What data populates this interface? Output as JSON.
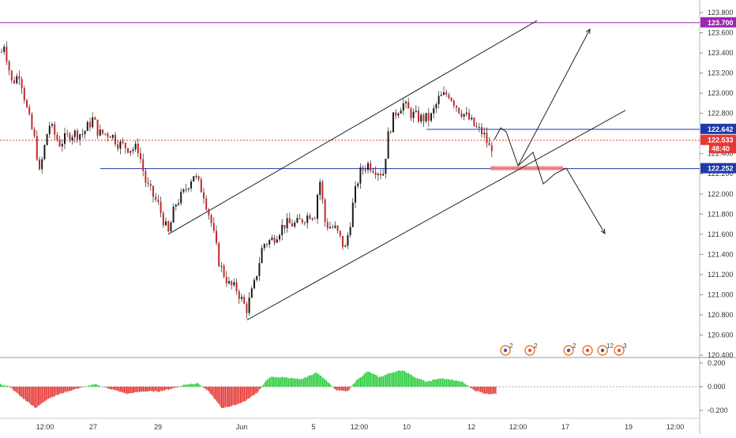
{
  "chart_data": [
    {
      "type": "candlestick",
      "title": "",
      "y_ticks": [
        "123.800",
        "123.600",
        "123.400",
        "123.200",
        "123.000",
        "122.800",
        "122.400",
        "122.200",
        "122.000",
        "121.800",
        "121.600",
        "121.400",
        "121.200",
        "121.000",
        "120.800",
        "120.600",
        "120.400"
      ],
      "x_ticks": [
        "12:00",
        "27",
        "29",
        "Jun",
        "5",
        "12:00",
        "10",
        "12",
        "12:00",
        "17",
        "19",
        "12:00"
      ],
      "price_tags": [
        {
          "label": "123.700",
          "value": 123.7,
          "color": "#9c27b0"
        },
        {
          "label": "122.642",
          "value": 122.642,
          "color": "#1e3aa8"
        },
        {
          "label": "122.533",
          "value": 122.533,
          "color": "#e53935"
        },
        {
          "label": "48:40",
          "value": 122.45,
          "color": "#e53935"
        },
        {
          "label": "122.252",
          "value": 122.252,
          "color": "#1e3aa8"
        }
      ],
      "horizontal_lines": [
        {
          "value": 123.7,
          "color": "#9c27b0",
          "style": "solid"
        },
        {
          "value": 122.642,
          "color": "#1e3aa8",
          "style": "solid"
        },
        {
          "value": 122.533,
          "color": "#e53935",
          "style": "dotted"
        },
        {
          "value": 122.252,
          "color": "#1e3aa8",
          "style": "solid"
        }
      ],
      "colors": {
        "up": "#1a1a1a",
        "down": "#c62828",
        "zone": "#ef7c7c"
      },
      "event_icons": [
        {
          "count": "2"
        },
        {
          "count": "2"
        },
        {
          "count": "2"
        },
        {
          "count": ""
        },
        {
          "count": "12"
        },
        {
          "count": "3"
        }
      ]
    },
    {
      "type": "histogram",
      "title": "",
      "y_ticks": [
        "0.200",
        "0.000",
        "-0.200"
      ],
      "colors": {
        "positive": "#2ecc40",
        "negative": "#e53935"
      }
    }
  ]
}
